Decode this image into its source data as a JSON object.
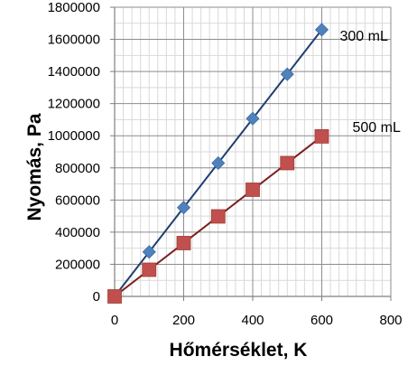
{
  "chart_data": {
    "type": "scatter",
    "xlabel": "Hőmérséklet, K",
    "ylabel": "Nyomás, Pa",
    "xlim": [
      0,
      800
    ],
    "ylim": [
      0,
      1800000
    ],
    "xticks": [
      "0",
      "200",
      "400",
      "600",
      "800"
    ],
    "yticks": [
      "0",
      "200000",
      "400000",
      "600000",
      "800000",
      "1000000",
      "1200000",
      "1400000",
      "1600000",
      "1800000"
    ],
    "grid": true,
    "series": [
      {
        "name": "300 mL",
        "marker": "diamond",
        "color": "#4f81bd",
        "trendline_color": "#1f3f6e",
        "x": [
          0,
          100,
          200,
          300,
          400,
          500,
          600
        ],
        "y": [
          0,
          277000,
          553000,
          830000,
          1107000,
          1383000,
          1660000
        ]
      },
      {
        "name": "500 mL",
        "marker": "square",
        "color": "#c0504d",
        "trendline_color": "#7a1f1f",
        "x": [
          0,
          100,
          200,
          300,
          400,
          500,
          600
        ],
        "y": [
          0,
          166000,
          332000,
          498000,
          664000,
          830000,
          996000
        ]
      }
    ]
  }
}
